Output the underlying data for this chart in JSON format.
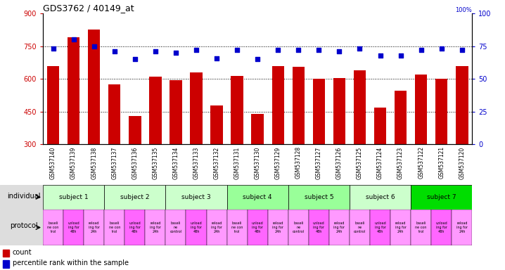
{
  "title": "GDS3762 / 40149_at",
  "samples": [
    "GSM537140",
    "GSM537139",
    "GSM537138",
    "GSM537137",
    "GSM537136",
    "GSM537135",
    "GSM537134",
    "GSM537133",
    "GSM537132",
    "GSM537131",
    "GSM537130",
    "GSM537129",
    "GSM537128",
    "GSM537127",
    "GSM537126",
    "GSM537125",
    "GSM537124",
    "GSM537123",
    "GSM537122",
    "GSM537121",
    "GSM537120"
  ],
  "counts": [
    660,
    790,
    825,
    575,
    430,
    610,
    595,
    630,
    480,
    615,
    440,
    660,
    655,
    600,
    605,
    640,
    470,
    545,
    620,
    600,
    660
  ],
  "percentiles": [
    73,
    80,
    75,
    71,
    65,
    71,
    70,
    72,
    66,
    72,
    65,
    72,
    72,
    72,
    71,
    73,
    68,
    68,
    72,
    73,
    72
  ],
  "ylim_left": [
    300,
    900
  ],
  "ylim_right": [
    0,
    100
  ],
  "yticks_left": [
    300,
    450,
    600,
    750,
    900
  ],
  "yticks_right": [
    0,
    25,
    50,
    75,
    100
  ],
  "bar_color": "#cc0000",
  "dot_color": "#0000cc",
  "subjects": [
    {
      "label": "subject 1",
      "start": 0,
      "end": 3,
      "color": "#ccffcc"
    },
    {
      "label": "subject 2",
      "start": 3,
      "end": 6,
      "color": "#ccffcc"
    },
    {
      "label": "subject 3",
      "start": 6,
      "end": 9,
      "color": "#ccffcc"
    },
    {
      "label": "subject 4",
      "start": 9,
      "end": 12,
      "color": "#99ff99"
    },
    {
      "label": "subject 5",
      "start": 12,
      "end": 15,
      "color": "#99ff99"
    },
    {
      "label": "subject 6",
      "start": 15,
      "end": 18,
      "color": "#ccffcc"
    },
    {
      "label": "subject 7",
      "start": 18,
      "end": 21,
      "color": "#00dd00"
    }
  ],
  "protocols": [
    {
      "label": "baseli\nne con\ntrol",
      "color": "#ff99ff"
    },
    {
      "label": "unload\ning for\n48h",
      "color": "#ff66ff"
    },
    {
      "label": "reload\ning for\n24h",
      "color": "#ff99ff"
    },
    {
      "label": "baseli\nne con\ntrol",
      "color": "#ff99ff"
    },
    {
      "label": "unload\ning for\n48h",
      "color": "#ff66ff"
    },
    {
      "label": "reload\ning for\n24h",
      "color": "#ff99ff"
    },
    {
      "label": "baseli\nne\ncontrol",
      "color": "#ff99ff"
    },
    {
      "label": "unload\ning for\n48h",
      "color": "#ff66ff"
    },
    {
      "label": "reload\ning for\n24h",
      "color": "#ff99ff"
    },
    {
      "label": "baseli\nne con\ntrol",
      "color": "#ff99ff"
    },
    {
      "label": "unload\ning for\n48h",
      "color": "#ff66ff"
    },
    {
      "label": "reload\ning for\n24h",
      "color": "#ff99ff"
    },
    {
      "label": "baseli\nne\ncontrol",
      "color": "#ff99ff"
    },
    {
      "label": "unload\ning for\n48h",
      "color": "#ff66ff"
    },
    {
      "label": "reload\ning for\n24h",
      "color": "#ff99ff"
    },
    {
      "label": "baseli\nne\ncontrol",
      "color": "#ff99ff"
    },
    {
      "label": "unload\ning for\n48h",
      "color": "#ff66ff"
    },
    {
      "label": "reload\ning for\n24h",
      "color": "#ff99ff"
    },
    {
      "label": "baseli\nne con\ntrol",
      "color": "#ff99ff"
    },
    {
      "label": "unload\ning for\n48h",
      "color": "#ff66ff"
    },
    {
      "label": "reload\ning for\n24h",
      "color": "#ff99ff"
    }
  ],
  "legend_count_color": "#cc0000",
  "legend_dot_color": "#0000cc",
  "individual_label": "individual",
  "protocol_label": "protocol",
  "label_bg_color": "#dddddd",
  "background_color": "#ffffff"
}
